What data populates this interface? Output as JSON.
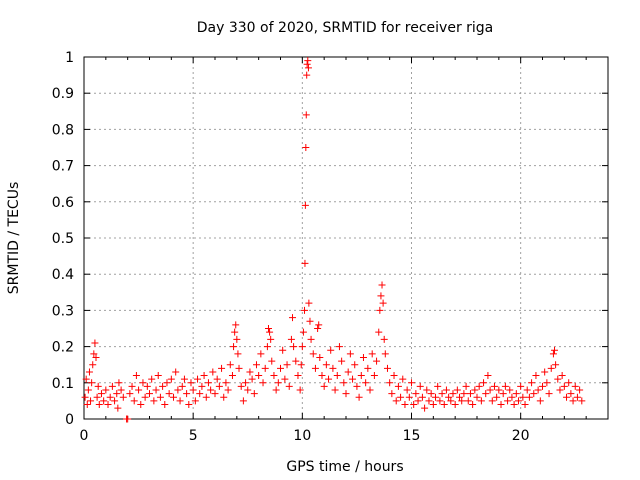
{
  "chart_data": {
    "type": "scatter",
    "title": "Day 330 of 2020, SRMTID for receiver riga",
    "xlabel": "GPS time / hours",
    "ylabel": "SRMTID / TECUs",
    "xlim": [
      0,
      24
    ],
    "ylim": [
      0,
      1
    ],
    "xticks": [
      0,
      5,
      10,
      15,
      20
    ],
    "yticks": [
      0,
      0.1,
      0.2,
      0.3,
      0.4,
      0.5,
      0.6,
      0.7,
      0.8,
      0.9,
      1
    ],
    "xtick_labels": [
      "0",
      "5",
      "10",
      "15",
      "20"
    ],
    "ytick_labels": [
      "0",
      "0.1",
      "0.2",
      "0.3",
      "0.4",
      "0.5",
      "0.6",
      "0.7",
      "0.8",
      "0.9",
      "1"
    ],
    "grid": true,
    "marker": "plus",
    "color": "#ff0000",
    "series": [
      {
        "name": "SRMTID",
        "points": [
          [
            0.05,
            0.06
          ],
          [
            0.1,
            0.11
          ],
          [
            0.15,
            0.04
          ],
          [
            0.2,
            0.08
          ],
          [
            0.25,
            0.13
          ],
          [
            0.3,
            0.05
          ],
          [
            0.35,
            0.1
          ],
          [
            0.4,
            0.15
          ],
          [
            0.45,
            0.18
          ],
          [
            0.5,
            0.21
          ],
          [
            0.55,
            0.17
          ],
          [
            0.6,
            0.06
          ],
          [
            0.65,
            0.09
          ],
          [
            0.7,
            0.04
          ],
          [
            0.8,
            0.07
          ],
          [
            0.9,
            0.05
          ],
          [
            1.0,
            0.08
          ],
          [
            1.1,
            0.04
          ],
          [
            1.2,
            0.06
          ],
          [
            1.3,
            0.09
          ],
          [
            1.4,
            0.05
          ],
          [
            1.5,
            0.07
          ],
          [
            1.55,
            0.03
          ],
          [
            1.6,
            0.1
          ],
          [
            1.7,
            0.08
          ],
          [
            1.8,
            0.06
          ],
          [
            1.95,
            0.0
          ],
          [
            2.0,
            0.0
          ],
          [
            2.1,
            0.07
          ],
          [
            2.2,
            0.09
          ],
          [
            2.3,
            0.05
          ],
          [
            2.4,
            0.12
          ],
          [
            2.5,
            0.08
          ],
          [
            2.6,
            0.04
          ],
          [
            2.7,
            0.1
          ],
          [
            2.8,
            0.06
          ],
          [
            2.9,
            0.09
          ],
          [
            3.0,
            0.07
          ],
          [
            3.1,
            0.11
          ],
          [
            3.2,
            0.05
          ],
          [
            3.3,
            0.08
          ],
          [
            3.4,
            0.12
          ],
          [
            3.5,
            0.06
          ],
          [
            3.6,
            0.09
          ],
          [
            3.7,
            0.04
          ],
          [
            3.8,
            0.1
          ],
          [
            3.9,
            0.07
          ],
          [
            4.0,
            0.11
          ],
          [
            4.1,
            0.06
          ],
          [
            4.2,
            0.13
          ],
          [
            4.3,
            0.08
          ],
          [
            4.4,
            0.05
          ],
          [
            4.5,
            0.09
          ],
          [
            4.6,
            0.11
          ],
          [
            4.7,
            0.07
          ],
          [
            4.8,
            0.04
          ],
          [
            4.9,
            0.1
          ],
          [
            5.0,
            0.08
          ],
          [
            5.1,
            0.05
          ],
          [
            5.2,
            0.11
          ],
          [
            5.3,
            0.07
          ],
          [
            5.4,
            0.09
          ],
          [
            5.5,
            0.12
          ],
          [
            5.6,
            0.06
          ],
          [
            5.7,
            0.1
          ],
          [
            5.8,
            0.08
          ],
          [
            5.9,
            0.13
          ],
          [
            6.0,
            0.07
          ],
          [
            6.1,
            0.11
          ],
          [
            6.2,
            0.09
          ],
          [
            6.3,
            0.14
          ],
          [
            6.4,
            0.06
          ],
          [
            6.5,
            0.1
          ],
          [
            6.6,
            0.08
          ],
          [
            6.7,
            0.15
          ],
          [
            6.8,
            0.12
          ],
          [
            6.85,
            0.2
          ],
          [
            6.9,
            0.24
          ],
          [
            6.95,
            0.26
          ],
          [
            7.0,
            0.22
          ],
          [
            7.05,
            0.18
          ],
          [
            7.1,
            0.14
          ],
          [
            7.2,
            0.09
          ],
          [
            7.3,
            0.05
          ],
          [
            7.4,
            0.1
          ],
          [
            7.5,
            0.08
          ],
          [
            7.6,
            0.13
          ],
          [
            7.7,
            0.11
          ],
          [
            7.8,
            0.07
          ],
          [
            7.9,
            0.15
          ],
          [
            8.0,
            0.12
          ],
          [
            8.1,
            0.18
          ],
          [
            8.2,
            0.1
          ],
          [
            8.3,
            0.14
          ],
          [
            8.4,
            0.2
          ],
          [
            8.45,
            0.25
          ],
          [
            8.5,
            0.24
          ],
          [
            8.55,
            0.22
          ],
          [
            8.6,
            0.16
          ],
          [
            8.7,
            0.12
          ],
          [
            8.8,
            0.08
          ],
          [
            8.9,
            0.1
          ],
          [
            9.0,
            0.14
          ],
          [
            9.1,
            0.19
          ],
          [
            9.2,
            0.11
          ],
          [
            9.3,
            0.15
          ],
          [
            9.4,
            0.09
          ],
          [
            9.5,
            0.22
          ],
          [
            9.55,
            0.28
          ],
          [
            9.6,
            0.2
          ],
          [
            9.7,
            0.16
          ],
          [
            9.8,
            0.12
          ],
          [
            9.9,
            0.08
          ],
          [
            9.95,
            0.15
          ],
          [
            10.0,
            0.2
          ],
          [
            10.05,
            0.24
          ],
          [
            10.1,
            0.3
          ],
          [
            10.12,
            0.43
          ],
          [
            10.14,
            0.59
          ],
          [
            10.16,
            0.75
          ],
          [
            10.18,
            0.84
          ],
          [
            10.2,
            0.95
          ],
          [
            10.22,
            0.98
          ],
          [
            10.25,
            0.99
          ],
          [
            10.28,
            0.97
          ],
          [
            10.3,
            0.32
          ],
          [
            10.35,
            0.27
          ],
          [
            10.4,
            0.22
          ],
          [
            10.5,
            0.18
          ],
          [
            10.6,
            0.14
          ],
          [
            10.7,
            0.25
          ],
          [
            10.75,
            0.26
          ],
          [
            10.8,
            0.17
          ],
          [
            10.9,
            0.12
          ],
          [
            11.0,
            0.09
          ],
          [
            11.1,
            0.15
          ],
          [
            11.2,
            0.11
          ],
          [
            11.3,
            0.19
          ],
          [
            11.4,
            0.14
          ],
          [
            11.5,
            0.08
          ],
          [
            11.6,
            0.12
          ],
          [
            11.7,
            0.2
          ],
          [
            11.8,
            0.16
          ],
          [
            11.9,
            0.1
          ],
          [
            12.0,
            0.07
          ],
          [
            12.1,
            0.13
          ],
          [
            12.2,
            0.18
          ],
          [
            12.3,
            0.11
          ],
          [
            12.4,
            0.15
          ],
          [
            12.5,
            0.09
          ],
          [
            12.6,
            0.06
          ],
          [
            12.7,
            0.12
          ],
          [
            12.8,
            0.17
          ],
          [
            12.9,
            0.1
          ],
          [
            13.0,
            0.14
          ],
          [
            13.1,
            0.08
          ],
          [
            13.2,
            0.18
          ],
          [
            13.3,
            0.12
          ],
          [
            13.4,
            0.16
          ],
          [
            13.5,
            0.24
          ],
          [
            13.55,
            0.3
          ],
          [
            13.6,
            0.34
          ],
          [
            13.65,
            0.37
          ],
          [
            13.7,
            0.32
          ],
          [
            13.75,
            0.22
          ],
          [
            13.8,
            0.18
          ],
          [
            13.9,
            0.14
          ],
          [
            14.0,
            0.1
          ],
          [
            14.1,
            0.07
          ],
          [
            14.2,
            0.12
          ],
          [
            14.3,
            0.05
          ],
          [
            14.4,
            0.09
          ],
          [
            14.5,
            0.06
          ],
          [
            14.6,
            0.11
          ],
          [
            14.7,
            0.04
          ],
          [
            14.8,
            0.08
          ],
          [
            14.9,
            0.06
          ],
          [
            15.0,
            0.1
          ],
          [
            15.1,
            0.04
          ],
          [
            15.2,
            0.07
          ],
          [
            15.3,
            0.05
          ],
          [
            15.4,
            0.09
          ],
          [
            15.5,
            0.06
          ],
          [
            15.6,
            0.03
          ],
          [
            15.7,
            0.08
          ],
          [
            15.8,
            0.05
          ],
          [
            15.9,
            0.07
          ],
          [
            16.0,
            0.04
          ],
          [
            16.1,
            0.06
          ],
          [
            16.2,
            0.09
          ],
          [
            16.3,
            0.05
          ],
          [
            16.4,
            0.07
          ],
          [
            16.5,
            0.04
          ],
          [
            16.6,
            0.08
          ],
          [
            16.7,
            0.06
          ],
          [
            16.8,
            0.05
          ],
          [
            16.9,
            0.07
          ],
          [
            17.0,
            0.04
          ],
          [
            17.1,
            0.08
          ],
          [
            17.2,
            0.06
          ],
          [
            17.3,
            0.05
          ],
          [
            17.4,
            0.07
          ],
          [
            17.5,
            0.09
          ],
          [
            17.6,
            0.05
          ],
          [
            17.7,
            0.07
          ],
          [
            17.8,
            0.04
          ],
          [
            17.9,
            0.08
          ],
          [
            18.0,
            0.06
          ],
          [
            18.1,
            0.09
          ],
          [
            18.2,
            0.05
          ],
          [
            18.3,
            0.1
          ],
          [
            18.4,
            0.07
          ],
          [
            18.5,
            0.12
          ],
          [
            18.6,
            0.08
          ],
          [
            18.7,
            0.05
          ],
          [
            18.8,
            0.09
          ],
          [
            18.9,
            0.06
          ],
          [
            19.0,
            0.08
          ],
          [
            19.1,
            0.04
          ],
          [
            19.2,
            0.07
          ],
          [
            19.3,
            0.09
          ],
          [
            19.4,
            0.05
          ],
          [
            19.5,
            0.08
          ],
          [
            19.6,
            0.06
          ],
          [
            19.7,
            0.04
          ],
          [
            19.8,
            0.07
          ],
          [
            19.9,
            0.05
          ],
          [
            20.0,
            0.09
          ],
          [
            20.1,
            0.06
          ],
          [
            20.2,
            0.04
          ],
          [
            20.3,
            0.08
          ],
          [
            20.4,
            0.06
          ],
          [
            20.5,
            0.1
          ],
          [
            20.6,
            0.07
          ],
          [
            20.7,
            0.12
          ],
          [
            20.8,
            0.08
          ],
          [
            20.9,
            0.05
          ],
          [
            21.0,
            0.09
          ],
          [
            21.1,
            0.13
          ],
          [
            21.2,
            0.1
          ],
          [
            21.3,
            0.07
          ],
          [
            21.4,
            0.14
          ],
          [
            21.5,
            0.18
          ],
          [
            21.55,
            0.19
          ],
          [
            21.6,
            0.15
          ],
          [
            21.7,
            0.11
          ],
          [
            21.8,
            0.08
          ],
          [
            21.9,
            0.12
          ],
          [
            22.0,
            0.09
          ],
          [
            22.1,
            0.06
          ],
          [
            22.2,
            0.1
          ],
          [
            22.3,
            0.07
          ],
          [
            22.4,
            0.05
          ],
          [
            22.5,
            0.09
          ],
          [
            22.6,
            0.06
          ],
          [
            22.7,
            0.08
          ],
          [
            22.8,
            0.05
          ]
        ]
      }
    ]
  }
}
